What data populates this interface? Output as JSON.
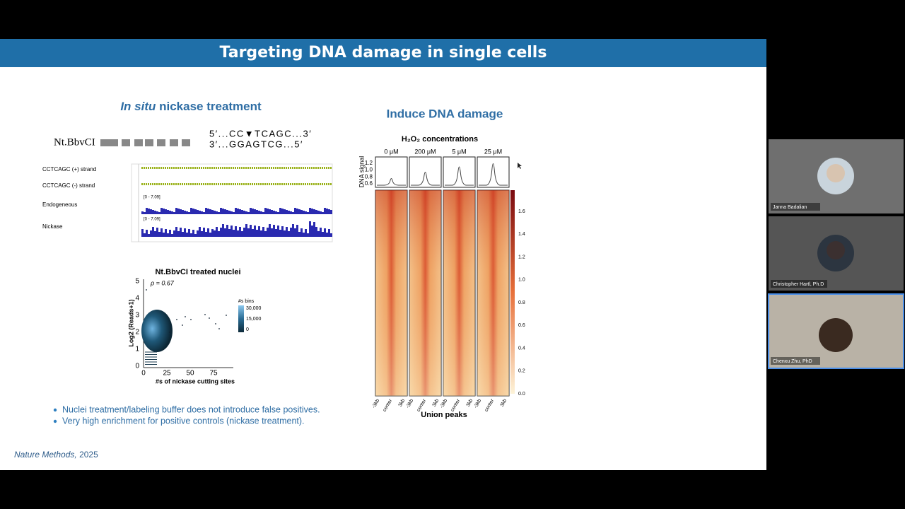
{
  "slide": {
    "title": "Targeting DNA damage in single cells",
    "left_heading": {
      "italic": "In situ",
      "rest": "nickase treatment"
    },
    "enzyme": "Nt.BbvCI",
    "sequence": [
      "5′...CC▼TCAGC...3′",
      "3′...GGAGTCG...5′"
    ],
    "tracks": [
      "CCTCAGC (+) strand",
      "CCTCAGC (-) strand",
      "Endogeneous",
      "Nickase"
    ],
    "track_ranges": [
      "[0 - 7.09]",
      "[0 - 7.09]"
    ],
    "scatter": {
      "title": "Nt.BbvCI treated nuclei",
      "rho": "ρ = 0.67",
      "x_label": "#s of nickase cutting sites",
      "y_label": "Log2 (Reads+1)",
      "x_ticks": [
        "0",
        "25",
        "50",
        "75"
      ],
      "y_ticks": [
        "0",
        "1",
        "2",
        "3",
        "4",
        "5"
      ],
      "colorbar_title": "#s bins",
      "colorbar_ticks": [
        "30,000",
        "15,000",
        "0"
      ]
    },
    "bullets": [
      "Nuclei treatment/labeling buffer does not introduce false positives.",
      "Very high enrichment for positive controls (nickase treatment)."
    ],
    "citation": {
      "journal": "Nature Methods,",
      "year": "2025"
    },
    "right_heading": "Induce DNA damage",
    "heatmap": {
      "title": "H₂O₂ concentrations",
      "columns": [
        "0 μM",
        "200 μM",
        "5 μM",
        "25 μM"
      ],
      "profile_label": "DNA signal",
      "profile_ticks": [
        "1.2",
        "1.0",
        "0.8",
        "0.6"
      ],
      "x_ticks": [
        "-3kb",
        "center",
        "3kb"
      ],
      "x_label": "Union peaks",
      "colorbar_ticks": [
        "1.6",
        "1.4",
        "1.2",
        "1.0",
        "0.8",
        "0.6",
        "0.4",
        "0.2",
        "0.0"
      ]
    }
  },
  "participants": [
    "Janna Badalian",
    "Christopher Hartl, Ph.D",
    "Chenxu Zhu, PhD"
  ]
}
